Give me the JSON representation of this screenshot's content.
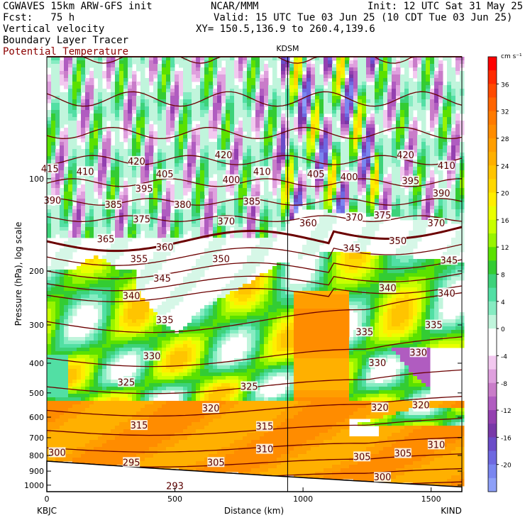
{
  "header": {
    "line1_left": "CGWAVES 15km ARW-GFS init",
    "line1_mid": "NCAR/MMM",
    "line1_right": "Init: 12 UTC Sat 31 May 25",
    "line2_left": "Fcst:   75 h",
    "line2_right": "Valid: 15 UTC Tue 03 Jun 25 (10 CDT Tue 03 Jun 25)",
    "line3_left": "Vertical velocity",
    "line3_right": "XY= 150.5,136.9 to 260.4,139.6",
    "line4_left": "Boundary Layer Tracer",
    "line5_left": "Potential Temperature"
  },
  "colors": {
    "theta_contour": "#6b0000",
    "accent_red": "#8b0000"
  },
  "chart_data": {
    "type": "heatmap",
    "station_marker": "KDSM",
    "station_marker_x_km": 940,
    "x_start_label": "KBJC",
    "x_end_label": "KIND",
    "xlabel": "Distance (km)",
    "ylabel": "Pressure (hPa), log scale",
    "xlim": [
      0,
      1620
    ],
    "x_ticks": [
      0,
      500,
      1000,
      1500
    ],
    "y_ticks": [
      100,
      200,
      300,
      400,
      500,
      600,
      700,
      800,
      900,
      1000
    ],
    "ylim_hpa": [
      1050,
      40
    ],
    "y_scale": "log",
    "colorbar": {
      "unit": "cm s⁻¹",
      "tick_labels": [
        "36",
        "32",
        "28",
        "24",
        "20",
        "16",
        "12",
        "8",
        "4",
        "0",
        "-4",
        "-8",
        "-12",
        "-16",
        "-20"
      ],
      "levels": [
        40,
        38,
        36,
        34,
        32,
        30,
        28,
        26,
        24,
        22,
        20,
        18,
        16,
        14,
        12,
        10,
        8,
        6,
        4,
        2,
        0,
        -2,
        -4,
        -6,
        -8,
        -10,
        -12,
        -14,
        -16,
        -18,
        -20,
        -22
      ],
      "colors": [
        "#ff0000",
        "#ff2a00",
        "#ff4a00",
        "#ff6400",
        "#ff7a00",
        "#ff8c00",
        "#ff9e00",
        "#ffb000",
        "#ffc400",
        "#ffd800",
        "#ffee00",
        "#eaff00",
        "#c8ff00",
        "#98f400",
        "#5ae100",
        "#33cc33",
        "#3dd27a",
        "#52dfa4",
        "#86ecc2",
        "#c0f5dc",
        "#ffffff",
        "#ffffff",
        "#f2c8ef",
        "#dfa0de",
        "#c97cc9",
        "#b05cc0",
        "#9440b0",
        "#7838a8",
        "#6a4cc8",
        "#6e68e0",
        "#7a86f0",
        "#8ea0f8"
      ]
    },
    "theta_label_values": [
      "420",
      "415",
      "410",
      "405",
      "400",
      "395",
      "390",
      "385",
      "380",
      "375",
      "370",
      "365",
      "360",
      "355",
      "350",
      "345",
      "340",
      "335",
      "330",
      "325",
      "320",
      "315",
      "310",
      "305",
      "300",
      "295",
      "293"
    ],
    "theta_labels": [
      {
        "v": "415",
        "x_km": 12,
        "p": 93
      },
      {
        "v": "410",
        "x_km": 150,
        "p": 95
      },
      {
        "v": "420",
        "x_km": 350,
        "p": 88
      },
      {
        "v": "405",
        "x_km": 460,
        "p": 97
      },
      {
        "v": "400",
        "x_km": 720,
        "p": 101
      },
      {
        "v": "420",
        "x_km": 690,
        "p": 84
      },
      {
        "v": "410",
        "x_km": 840,
        "p": 95
      },
      {
        "v": "405",
        "x_km": 1050,
        "p": 97
      },
      {
        "v": "400",
        "x_km": 1180,
        "p": 99
      },
      {
        "v": "420",
        "x_km": 1400,
        "p": 84
      },
      {
        "v": "395",
        "x_km": 1420,
        "p": 102
      },
      {
        "v": "410",
        "x_km": 1560,
        "p": 91
      },
      {
        "v": "390",
        "x_km": 22,
        "p": 118
      },
      {
        "v": "385",
        "x_km": 260,
        "p": 122
      },
      {
        "v": "395",
        "x_km": 380,
        "p": 108
      },
      {
        "v": "380",
        "x_km": 530,
        "p": 122
      },
      {
        "v": "385",
        "x_km": 800,
        "p": 119
      },
      {
        "v": "390",
        "x_km": 1540,
        "p": 112
      },
      {
        "v": "375",
        "x_km": 370,
        "p": 136
      },
      {
        "v": "370",
        "x_km": 700,
        "p": 138
      },
      {
        "v": "360",
        "x_km": 1020,
        "p": 140
      },
      {
        "v": "370",
        "x_km": 1200,
        "p": 134
      },
      {
        "v": "375",
        "x_km": 1310,
        "p": 132
      },
      {
        "v": "370",
        "x_km": 1520,
        "p": 140
      },
      {
        "v": "365",
        "x_km": 230,
        "p": 158
      },
      {
        "v": "360",
        "x_km": 460,
        "p": 168
      },
      {
        "v": "355",
        "x_km": 360,
        "p": 183
      },
      {
        "v": "350",
        "x_km": 680,
        "p": 183
      },
      {
        "v": "345",
        "x_km": 1190,
        "p": 169
      },
      {
        "v": "350",
        "x_km": 1370,
        "p": 160
      },
      {
        "v": "345",
        "x_km": 1570,
        "p": 185
      },
      {
        "v": "345",
        "x_km": 450,
        "p": 212
      },
      {
        "v": "340",
        "x_km": 330,
        "p": 242
      },
      {
        "v": "340",
        "x_km": 1330,
        "p": 228
      },
      {
        "v": "340",
        "x_km": 1560,
        "p": 237
      },
      {
        "v": "335",
        "x_km": 460,
        "p": 290
      },
      {
        "v": "335",
        "x_km": 1240,
        "p": 317
      },
      {
        "v": "335",
        "x_km": 1510,
        "p": 301
      },
      {
        "v": "330",
        "x_km": 410,
        "p": 380
      },
      {
        "v": "330",
        "x_km": 1290,
        "p": 400
      },
      {
        "v": "330",
        "x_km": 1450,
        "p": 370
      },
      {
        "v": "325",
        "x_km": 310,
        "p": 463
      },
      {
        "v": "325",
        "x_km": 790,
        "p": 478
      },
      {
        "v": "320",
        "x_km": 640,
        "p": 563
      },
      {
        "v": "320",
        "x_km": 1300,
        "p": 560
      },
      {
        "v": "320",
        "x_km": 1460,
        "p": 550
      },
      {
        "v": "315",
        "x_km": 360,
        "p": 640
      },
      {
        "v": "315",
        "x_km": 850,
        "p": 645
      },
      {
        "v": "310",
        "x_km": 850,
        "p": 765
      },
      {
        "v": "310",
        "x_km": 1520,
        "p": 740
      },
      {
        "v": "305",
        "x_km": 660,
        "p": 845
      },
      {
        "v": "305",
        "x_km": 1230,
        "p": 810
      },
      {
        "v": "305",
        "x_km": 1390,
        "p": 790
      },
      {
        "v": "300",
        "x_km": 40,
        "p": 785
      },
      {
        "v": "300",
        "x_km": 1310,
        "p": 945
      },
      {
        "v": "295",
        "x_km": 330,
        "p": 845
      },
      {
        "v": "293",
        "x_km": 500,
        "p": 1010
      }
    ]
  }
}
